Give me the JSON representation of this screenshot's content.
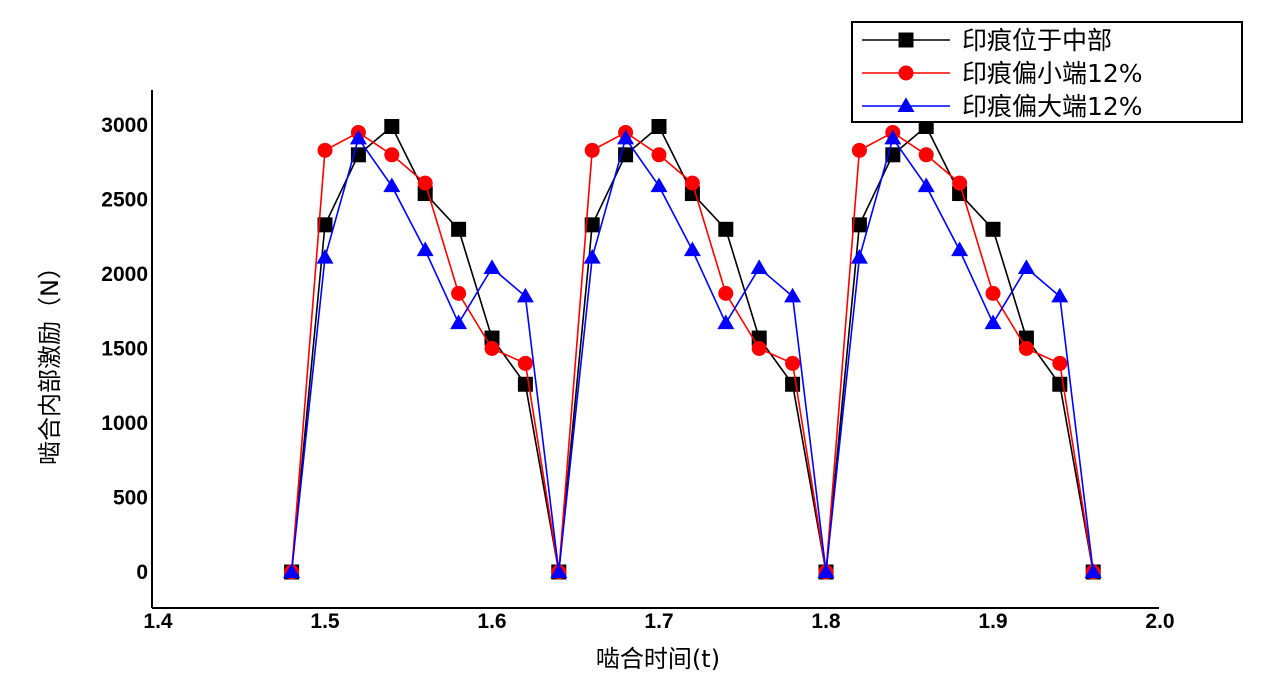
{
  "chart_data": {
    "type": "line",
    "xlabel": "啮合时间(t)",
    "ylabel": "啮合内部激励（N）",
    "xlim": [
      1.4,
      2.0
    ],
    "ylim": [
      -250,
      3200
    ],
    "x_ticks": [
      "1.4",
      "1.5",
      "1.6",
      "1.7",
      "1.8",
      "1.9",
      "2.0"
    ],
    "y_ticks": [
      "0",
      "500",
      "1000",
      "1500",
      "2000",
      "2500",
      "3000"
    ],
    "grid": false,
    "legend_position": "top-right",
    "series": [
      {
        "name": "印痕位于中部",
        "color": "#000000",
        "marker": "square",
        "x": [
          1.48,
          1.5,
          1.52,
          1.54,
          1.56,
          1.58,
          1.6,
          1.62,
          1.64,
          1.66,
          1.68,
          1.7,
          1.72,
          1.74,
          1.76,
          1.78,
          1.8,
          1.82,
          1.84,
          1.86,
          1.88,
          1.9,
          1.92,
          1.94,
          1.96
        ],
        "y": [
          0,
          2330,
          2800,
          2990,
          2540,
          2300,
          1570,
          1260,
          0,
          2330,
          2800,
          2990,
          2540,
          2300,
          1570,
          1260,
          0,
          2330,
          2800,
          2990,
          2540,
          2300,
          1570,
          1260,
          0
        ]
      },
      {
        "name": "印痕偏小端12%",
        "color": "#ff0000",
        "marker": "circle",
        "x": [
          1.48,
          1.5,
          1.52,
          1.54,
          1.56,
          1.58,
          1.6,
          1.62,
          1.64,
          1.66,
          1.68,
          1.7,
          1.72,
          1.74,
          1.76,
          1.78,
          1.8,
          1.82,
          1.84,
          1.86,
          1.88,
          1.9,
          1.92,
          1.94,
          1.96
        ],
        "y": [
          0,
          2830,
          2950,
          2800,
          2610,
          1870,
          1500,
          1400,
          0,
          2830,
          2950,
          2800,
          2610,
          1870,
          1500,
          1400,
          0,
          2830,
          2950,
          2800,
          2610,
          1870,
          1500,
          1400,
          0
        ]
      },
      {
        "name": "印痕偏大端12%",
        "color": "#0000ff",
        "marker": "triangle",
        "x": [
          1.48,
          1.5,
          1.52,
          1.54,
          1.56,
          1.58,
          1.6,
          1.62,
          1.64,
          1.66,
          1.68,
          1.7,
          1.72,
          1.74,
          1.76,
          1.78,
          1.8,
          1.82,
          1.84,
          1.86,
          1.88,
          1.9,
          1.92,
          1.94,
          1.96
        ],
        "y": [
          0,
          2110,
          2910,
          2590,
          2160,
          1670,
          2040,
          1850,
          0,
          2110,
          2910,
          2590,
          2160,
          1670,
          2040,
          1850,
          0,
          2110,
          2910,
          2590,
          2160,
          1670,
          2040,
          1850,
          0
        ]
      }
    ]
  }
}
